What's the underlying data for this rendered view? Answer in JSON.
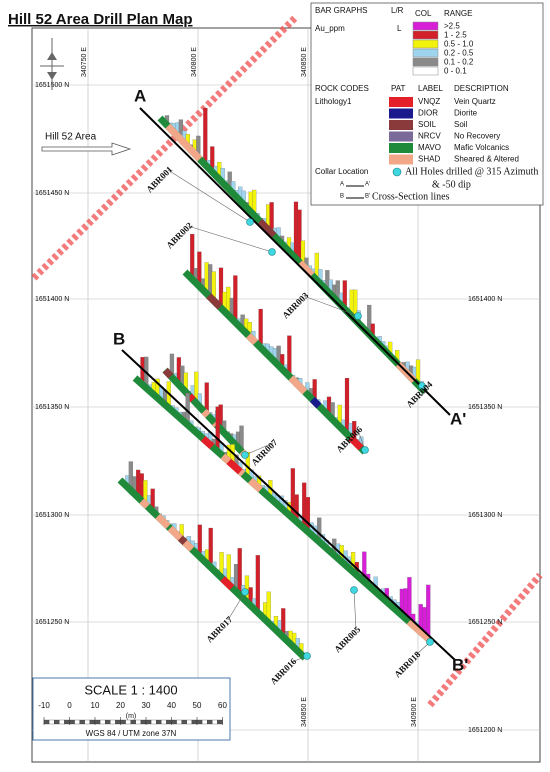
{
  "title": "Hill 52 Area Drill Plan Map",
  "legend": {
    "bar_graphs": "BAR GRAPHS",
    "lr": "L/R",
    "col": "COL",
    "range": "RANGE",
    "field": "Au_ppm",
    "side": "L",
    "ranges": [
      {
        "label": ">2.5",
        "color": "#d81fd8"
      },
      {
        "label": "1 - 2.5",
        "color": "#d1202a"
      },
      {
        "label": "0.5 - 1.0",
        "color": "#f2f20a"
      },
      {
        "label": "0.2 - 0.5",
        "color": "#9fd4ee"
      },
      {
        "label": "0.1 - 0.2",
        "color": "#8a8a8a"
      },
      {
        "label": "0 - 0.1",
        "color": "#ffffff"
      }
    ],
    "rock_codes": "ROCK CODES",
    "pat": "PAT",
    "label": "LABEL",
    "description": "DESCRIPTION",
    "lithology": "Lithology1",
    "rocks": [
      {
        "code": "VNQZ",
        "description": "Vein Quartz",
        "color": "#e3202a"
      },
      {
        "code": "DIOR",
        "description": "Diorite",
        "color": "#1a1a8c"
      },
      {
        "code": "SOIL",
        "description": "Soil",
        "color": "#8a3a3a"
      },
      {
        "code": "NRCV",
        "description": "No Recovery",
        "color": "#7a6a9a"
      },
      {
        "code": "MAVO",
        "description": "Mafic Volcanics",
        "color": "#1e8a3a"
      },
      {
        "code": "SHAD",
        "description": "Sheared & Altered",
        "color": "#f2a888"
      }
    ],
    "collar": "Collar Location",
    "note": [
      "All Holes drilled @ 315 Azimuth",
      "& -50 dip"
    ],
    "section_a": [
      "A",
      "A'"
    ],
    "section_b": [
      "B",
      "B'"
    ],
    "section_note": "Cross-Section lines"
  },
  "map": {
    "area_label": "Hill 52 Area",
    "eastings": [
      "340750 E",
      "340800 E",
      "340850 E",
      "340900 E"
    ],
    "northings": [
      "1651500 N",
      "1651450 N",
      "1651400 N",
      "1651350 N",
      "1651300 N",
      "1651250 N",
      "1651200 N"
    ],
    "sections": [
      {
        "start": "A",
        "end": "A'"
      },
      {
        "start": "B",
        "end": "B'"
      }
    ],
    "holes": [
      "ABR001",
      "ABR002",
      "ABR003",
      "ABR004",
      "ABR006",
      "ABR007",
      "ABR017",
      "ABR005",
      "ABR016",
      "ABR018"
    ]
  },
  "scale": {
    "title": "SCALE  1 : 1400",
    "unit": "(m)",
    "ticks": [
      "-10",
      "0",
      "10",
      "20",
      "30",
      "40",
      "50",
      "60"
    ],
    "datum": "WGS 84 / UTM zone 37N"
  }
}
